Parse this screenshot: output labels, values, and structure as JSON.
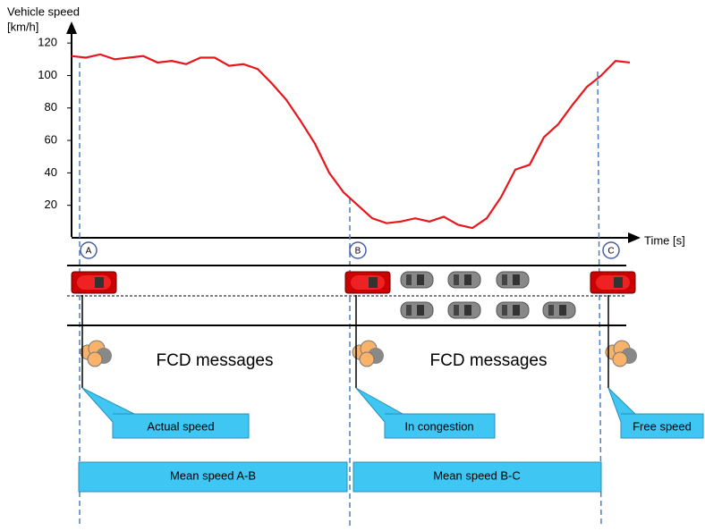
{
  "chart_data": {
    "type": "line",
    "y_label_lines": [
      "Vehicle speed",
      "[km/h]"
    ],
    "x_label": "Time [s]",
    "categories": [
      null,
      null,
      null,
      null,
      null,
      null,
      null,
      null,
      null,
      null,
      null,
      null,
      null,
      null,
      null,
      null,
      null,
      null,
      null,
      null,
      null,
      null,
      null,
      null,
      null,
      null,
      null,
      null,
      null,
      null,
      null,
      null,
      null,
      null,
      null,
      null,
      null,
      null,
      null,
      null
    ],
    "values": [
      112,
      111,
      113,
      110,
      111,
      112,
      108,
      109,
      107,
      111,
      111,
      106,
      107,
      104,
      95,
      85,
      72,
      58,
      40,
      28,
      20,
      12,
      9,
      10,
      12,
      10,
      13,
      8,
      6,
      12,
      25,
      42,
      45,
      62,
      70,
      82,
      93,
      100,
      109,
      108
    ],
    "color": "#e8161b",
    "ylim": [
      0,
      130
    ],
    "yticks": [
      20,
      40,
      60,
      80,
      100,
      120
    ]
  },
  "points": [
    "A",
    "B",
    "C"
  ],
  "messages": [
    "FCD messages",
    "FCD messages"
  ],
  "callouts": [
    "Actual speed",
    "In congestion",
    "Free speed"
  ],
  "segments": [
    "Mean speed A-B",
    "Mean speed B-C"
  ]
}
